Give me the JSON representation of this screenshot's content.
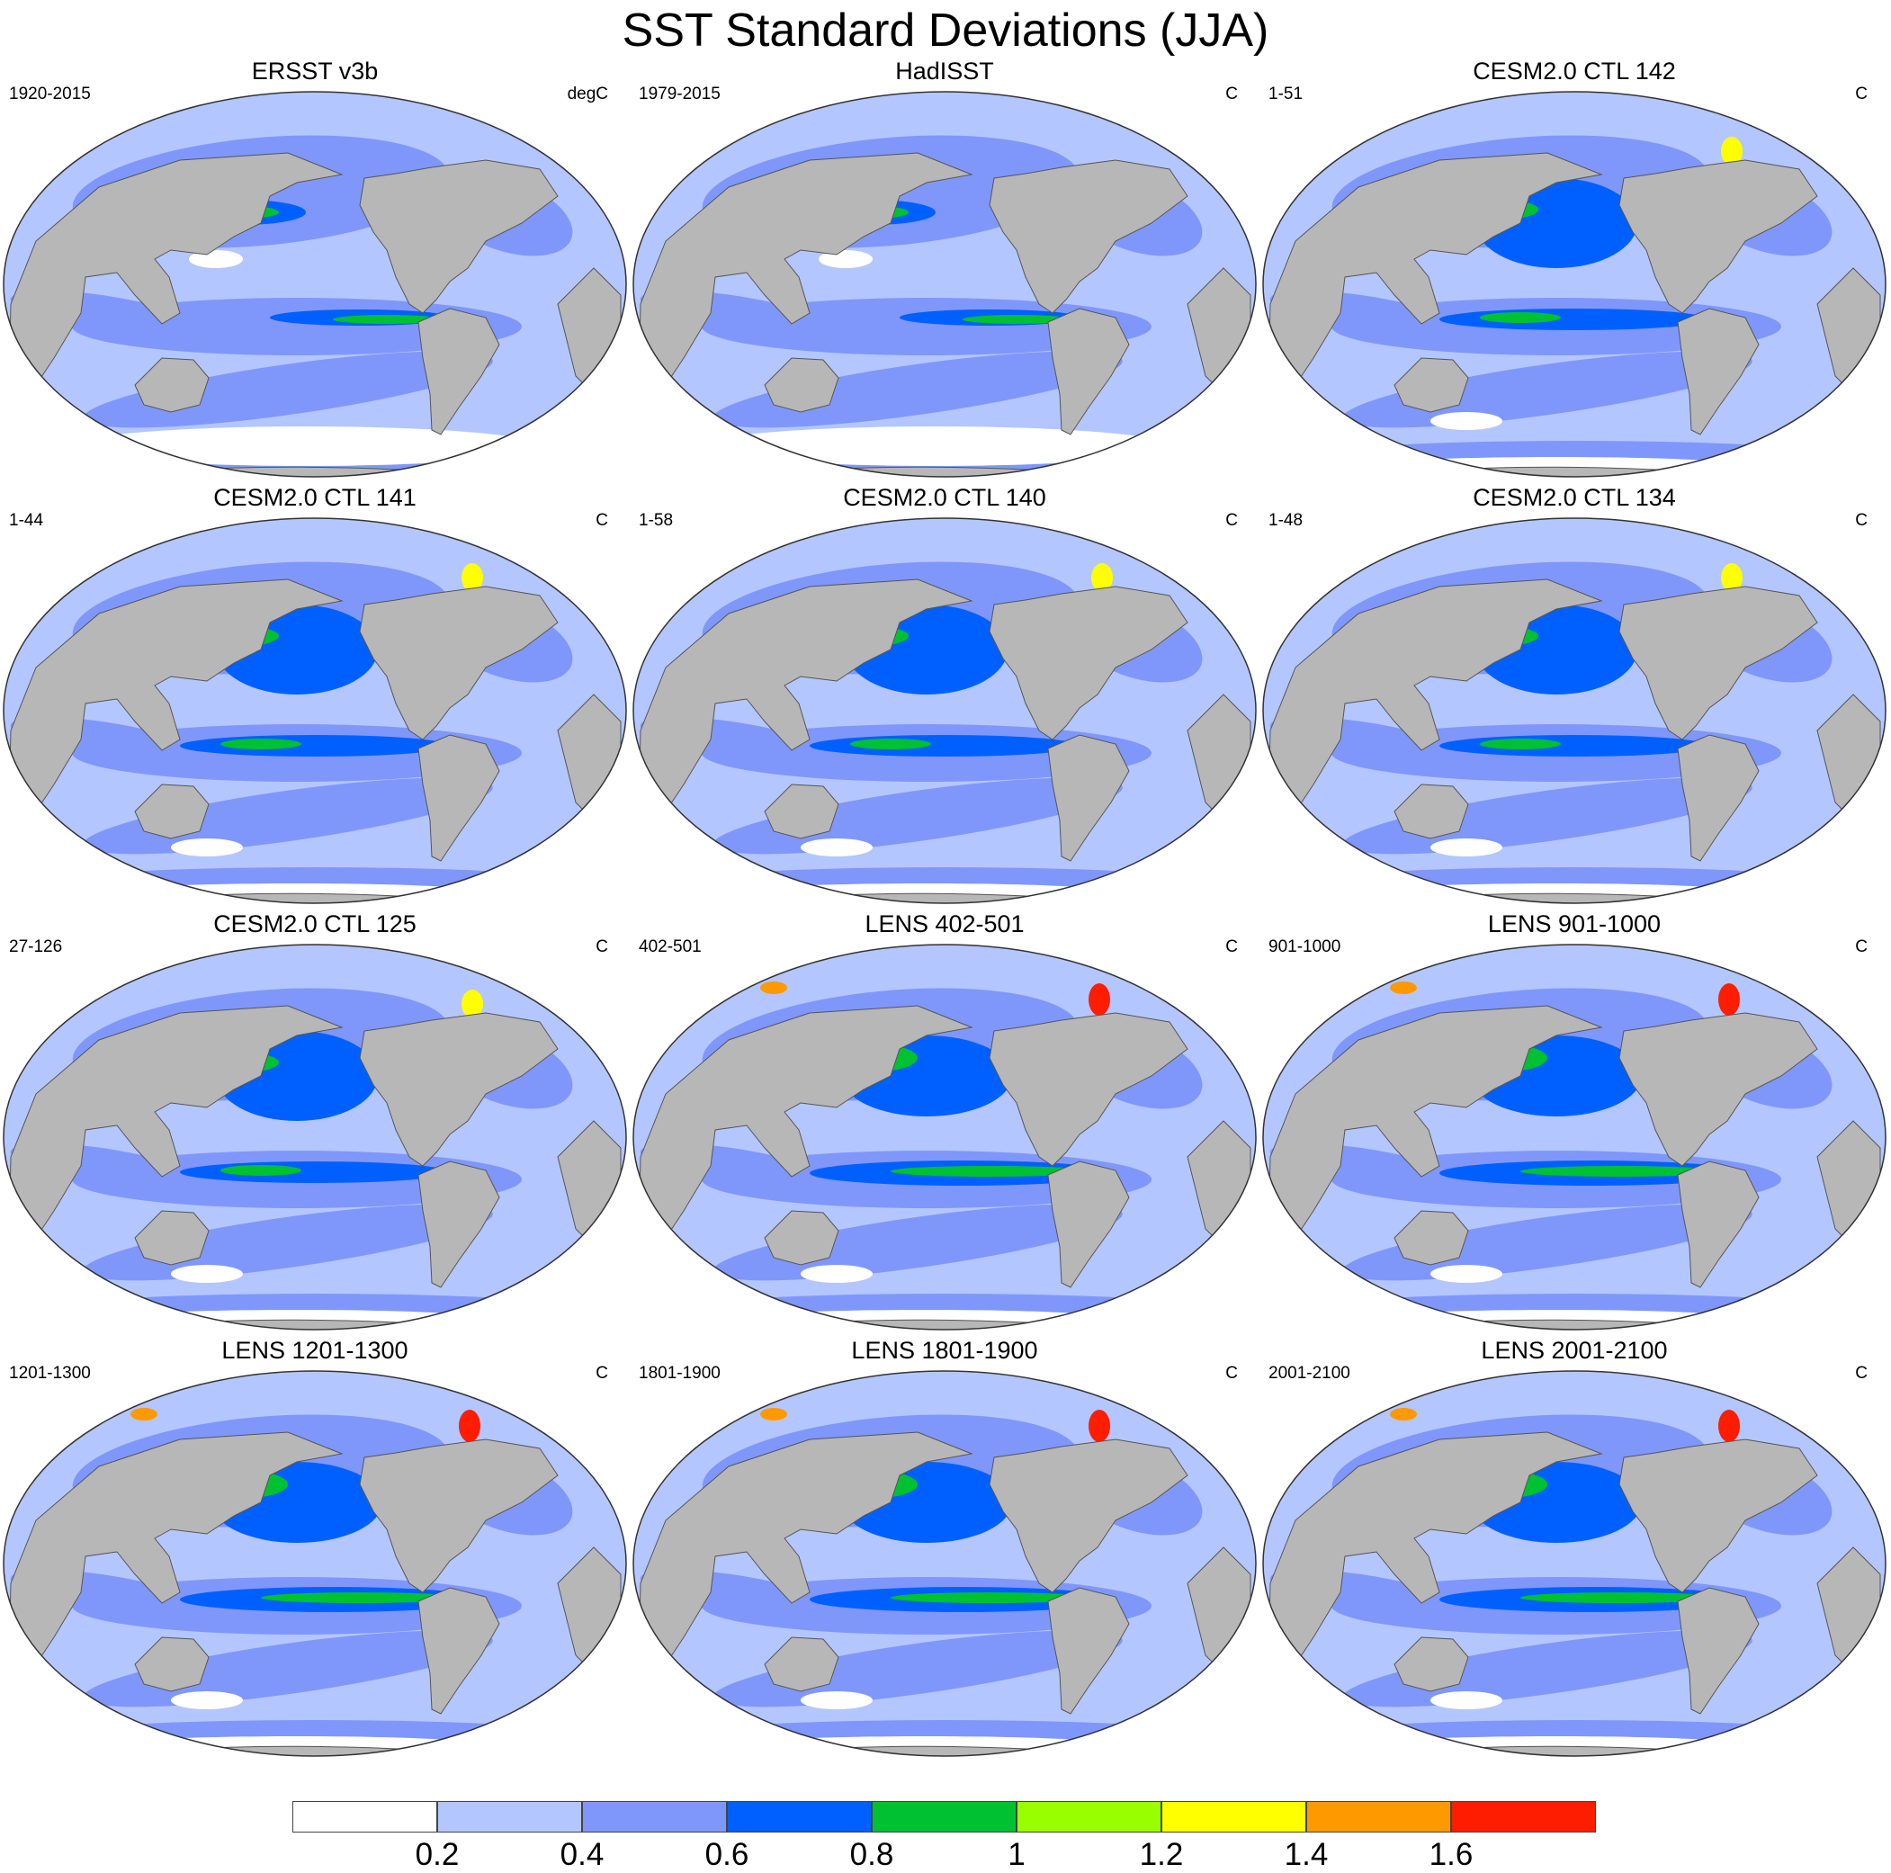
{
  "title": "SST Standard Deviations (JJA)",
  "panels": [
    {
      "title": "ERSST v3b",
      "period": "1920-2015",
      "units": "degC",
      "pattern": "obs"
    },
    {
      "title": "HadISST",
      "period": "1979-2015",
      "units": "C",
      "pattern": "obs"
    },
    {
      "title": "CESM2.0 CTL 142",
      "period": "1-51",
      "units": "C",
      "pattern": "ctl"
    },
    {
      "title": "CESM2.0 CTL 141",
      "period": "1-44",
      "units": "C",
      "pattern": "ctl"
    },
    {
      "title": "CESM2.0 CTL 140",
      "period": "1-58",
      "units": "C",
      "pattern": "ctl"
    },
    {
      "title": "CESM2.0 CTL 134",
      "period": "1-48",
      "units": "C",
      "pattern": "ctl"
    },
    {
      "title": "CESM2.0 CTL 125",
      "period": "27-126",
      "units": "C",
      "pattern": "ctl"
    },
    {
      "title": "LENS 402-501",
      "period": "402-501",
      "units": "C",
      "pattern": "lens"
    },
    {
      "title": "LENS 901-1000",
      "period": "901-1000",
      "units": "C",
      "pattern": "lens"
    },
    {
      "title": "LENS 1201-1300",
      "period": "1201-1300",
      "units": "C",
      "pattern": "lens"
    },
    {
      "title": "LENS 1801-1900",
      "period": "1801-1900",
      "units": "C",
      "pattern": "lens"
    },
    {
      "title": "LENS 2001-2100",
      "period": "2001-2100",
      "units": "C",
      "pattern": "lens"
    }
  ],
  "colorbar": {
    "labels": [
      "0.2",
      "0.4",
      "0.6",
      "0.8",
      "1",
      "1.2",
      "1.4",
      "1.6"
    ],
    "colors": [
      "#ffffff",
      "#b4c6ff",
      "#7f97fb",
      "#0060ff",
      "#00c131",
      "#99ff00",
      "#ffff00",
      "#ff9900",
      "#ff1d00"
    ]
  },
  "colors": {
    "land": "#b7b7b7",
    "coast": "#555555"
  }
}
